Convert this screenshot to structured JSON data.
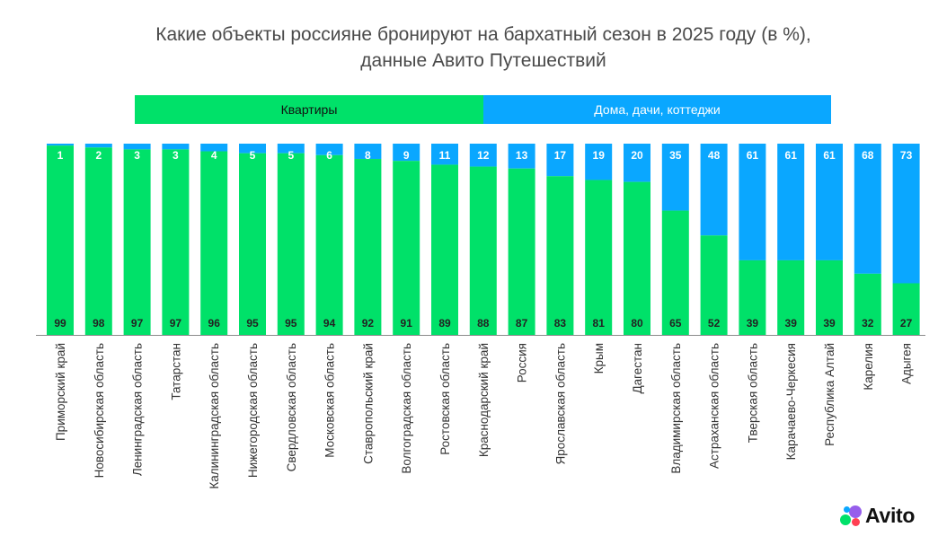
{
  "title": {
    "line1": "Какие объекты россияне бронируют на бархатный сезон в 2025 году (в %),",
    "line2": "данные Авито Путешествий"
  },
  "brand": {
    "name": "Avito"
  },
  "colors": {
    "apartments": "#00E169",
    "houses": "#0AA7FF",
    "axis": "#8a8a8a",
    "label_text": "#222222"
  },
  "chart_data": {
    "type": "bar",
    "stacked": true,
    "percent": true,
    "title": "Какие объекты россияне бронируют на бархатный сезон в 2025 году (в %), данные Авито Путешествий",
    "xlabel": "",
    "ylabel": "",
    "ylim": [
      0,
      100
    ],
    "legend": "top",
    "categories": [
      "Приморский край",
      "Новосибирская область",
      "Ленинградская область",
      "Татарстан",
      "Калининградская область",
      "Нижегородская область",
      "Свердловская область",
      "Московская область",
      "Ставропольский край",
      "Волгоградская область",
      "Ростовская область",
      "Краснодарский край",
      "Россия",
      "Ярославская область",
      "Крым",
      "Дагестан",
      "Владимирская область",
      "Астраханская область",
      "Тверская область",
      "Карачаево-Черкесия",
      "Республика Алтай",
      "Карелия",
      "Адыгея"
    ],
    "series": [
      {
        "name": "Квартиры",
        "color": "#00E169",
        "values": [
          99,
          98,
          97,
          97,
          96,
          95,
          95,
          94,
          92,
          91,
          89,
          88,
          87,
          83,
          81,
          80,
          65,
          52,
          39,
          39,
          39,
          32,
          27
        ]
      },
      {
        "name": "Дома, дачи, коттеджи",
        "color": "#0AA7FF",
        "values": [
          1,
          2,
          3,
          3,
          4,
          5,
          5,
          6,
          8,
          9,
          11,
          12,
          13,
          17,
          19,
          20,
          35,
          48,
          61,
          61,
          61,
          68,
          73
        ]
      }
    ]
  }
}
